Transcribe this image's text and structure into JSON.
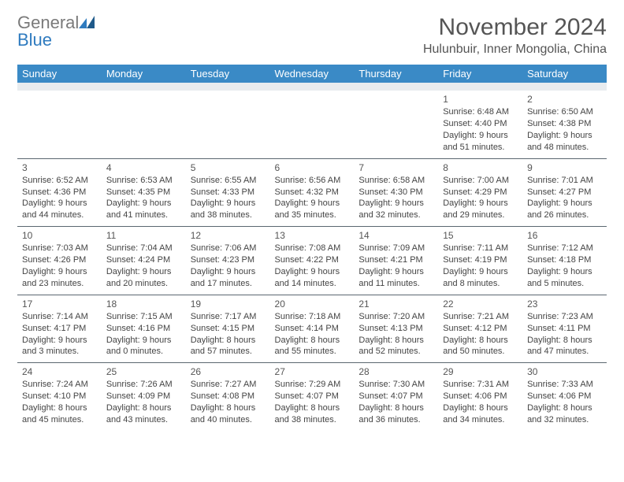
{
  "logo": {
    "text_gray": "General",
    "text_blue": "Blue"
  },
  "title": "November 2024",
  "location": "Hulunbuir, Inner Mongolia, China",
  "colors": {
    "header_bg": "#3a8ac6",
    "header_text": "#ffffff",
    "header_underband": "#e8ecef",
    "cell_border": "#5b6770",
    "body_text": "#444444",
    "title_text": "#555555",
    "logo_gray": "#7a7a7a",
    "logo_blue": "#2f7bbf",
    "background": "#ffffff"
  },
  "day_headers": [
    "Sunday",
    "Monday",
    "Tuesday",
    "Wednesday",
    "Thursday",
    "Friday",
    "Saturday"
  ],
  "weeks": [
    [
      null,
      null,
      null,
      null,
      null,
      {
        "n": "1",
        "sunrise": "Sunrise: 6:48 AM",
        "sunset": "Sunset: 4:40 PM",
        "daylight1": "Daylight: 9 hours",
        "daylight2": "and 51 minutes."
      },
      {
        "n": "2",
        "sunrise": "Sunrise: 6:50 AM",
        "sunset": "Sunset: 4:38 PM",
        "daylight1": "Daylight: 9 hours",
        "daylight2": "and 48 minutes."
      }
    ],
    [
      {
        "n": "3",
        "sunrise": "Sunrise: 6:52 AM",
        "sunset": "Sunset: 4:36 PM",
        "daylight1": "Daylight: 9 hours",
        "daylight2": "and 44 minutes."
      },
      {
        "n": "4",
        "sunrise": "Sunrise: 6:53 AM",
        "sunset": "Sunset: 4:35 PM",
        "daylight1": "Daylight: 9 hours",
        "daylight2": "and 41 minutes."
      },
      {
        "n": "5",
        "sunrise": "Sunrise: 6:55 AM",
        "sunset": "Sunset: 4:33 PM",
        "daylight1": "Daylight: 9 hours",
        "daylight2": "and 38 minutes."
      },
      {
        "n": "6",
        "sunrise": "Sunrise: 6:56 AM",
        "sunset": "Sunset: 4:32 PM",
        "daylight1": "Daylight: 9 hours",
        "daylight2": "and 35 minutes."
      },
      {
        "n": "7",
        "sunrise": "Sunrise: 6:58 AM",
        "sunset": "Sunset: 4:30 PM",
        "daylight1": "Daylight: 9 hours",
        "daylight2": "and 32 minutes."
      },
      {
        "n": "8",
        "sunrise": "Sunrise: 7:00 AM",
        "sunset": "Sunset: 4:29 PM",
        "daylight1": "Daylight: 9 hours",
        "daylight2": "and 29 minutes."
      },
      {
        "n": "9",
        "sunrise": "Sunrise: 7:01 AM",
        "sunset": "Sunset: 4:27 PM",
        "daylight1": "Daylight: 9 hours",
        "daylight2": "and 26 minutes."
      }
    ],
    [
      {
        "n": "10",
        "sunrise": "Sunrise: 7:03 AM",
        "sunset": "Sunset: 4:26 PM",
        "daylight1": "Daylight: 9 hours",
        "daylight2": "and 23 minutes."
      },
      {
        "n": "11",
        "sunrise": "Sunrise: 7:04 AM",
        "sunset": "Sunset: 4:24 PM",
        "daylight1": "Daylight: 9 hours",
        "daylight2": "and 20 minutes."
      },
      {
        "n": "12",
        "sunrise": "Sunrise: 7:06 AM",
        "sunset": "Sunset: 4:23 PM",
        "daylight1": "Daylight: 9 hours",
        "daylight2": "and 17 minutes."
      },
      {
        "n": "13",
        "sunrise": "Sunrise: 7:08 AM",
        "sunset": "Sunset: 4:22 PM",
        "daylight1": "Daylight: 9 hours",
        "daylight2": "and 14 minutes."
      },
      {
        "n": "14",
        "sunrise": "Sunrise: 7:09 AM",
        "sunset": "Sunset: 4:21 PM",
        "daylight1": "Daylight: 9 hours",
        "daylight2": "and 11 minutes."
      },
      {
        "n": "15",
        "sunrise": "Sunrise: 7:11 AM",
        "sunset": "Sunset: 4:19 PM",
        "daylight1": "Daylight: 9 hours",
        "daylight2": "and 8 minutes."
      },
      {
        "n": "16",
        "sunrise": "Sunrise: 7:12 AM",
        "sunset": "Sunset: 4:18 PM",
        "daylight1": "Daylight: 9 hours",
        "daylight2": "and 5 minutes."
      }
    ],
    [
      {
        "n": "17",
        "sunrise": "Sunrise: 7:14 AM",
        "sunset": "Sunset: 4:17 PM",
        "daylight1": "Daylight: 9 hours",
        "daylight2": "and 3 minutes."
      },
      {
        "n": "18",
        "sunrise": "Sunrise: 7:15 AM",
        "sunset": "Sunset: 4:16 PM",
        "daylight1": "Daylight: 9 hours",
        "daylight2": "and 0 minutes."
      },
      {
        "n": "19",
        "sunrise": "Sunrise: 7:17 AM",
        "sunset": "Sunset: 4:15 PM",
        "daylight1": "Daylight: 8 hours",
        "daylight2": "and 57 minutes."
      },
      {
        "n": "20",
        "sunrise": "Sunrise: 7:18 AM",
        "sunset": "Sunset: 4:14 PM",
        "daylight1": "Daylight: 8 hours",
        "daylight2": "and 55 minutes."
      },
      {
        "n": "21",
        "sunrise": "Sunrise: 7:20 AM",
        "sunset": "Sunset: 4:13 PM",
        "daylight1": "Daylight: 8 hours",
        "daylight2": "and 52 minutes."
      },
      {
        "n": "22",
        "sunrise": "Sunrise: 7:21 AM",
        "sunset": "Sunset: 4:12 PM",
        "daylight1": "Daylight: 8 hours",
        "daylight2": "and 50 minutes."
      },
      {
        "n": "23",
        "sunrise": "Sunrise: 7:23 AM",
        "sunset": "Sunset: 4:11 PM",
        "daylight1": "Daylight: 8 hours",
        "daylight2": "and 47 minutes."
      }
    ],
    [
      {
        "n": "24",
        "sunrise": "Sunrise: 7:24 AM",
        "sunset": "Sunset: 4:10 PM",
        "daylight1": "Daylight: 8 hours",
        "daylight2": "and 45 minutes."
      },
      {
        "n": "25",
        "sunrise": "Sunrise: 7:26 AM",
        "sunset": "Sunset: 4:09 PM",
        "daylight1": "Daylight: 8 hours",
        "daylight2": "and 43 minutes."
      },
      {
        "n": "26",
        "sunrise": "Sunrise: 7:27 AM",
        "sunset": "Sunset: 4:08 PM",
        "daylight1": "Daylight: 8 hours",
        "daylight2": "and 40 minutes."
      },
      {
        "n": "27",
        "sunrise": "Sunrise: 7:29 AM",
        "sunset": "Sunset: 4:07 PM",
        "daylight1": "Daylight: 8 hours",
        "daylight2": "and 38 minutes."
      },
      {
        "n": "28",
        "sunrise": "Sunrise: 7:30 AM",
        "sunset": "Sunset: 4:07 PM",
        "daylight1": "Daylight: 8 hours",
        "daylight2": "and 36 minutes."
      },
      {
        "n": "29",
        "sunrise": "Sunrise: 7:31 AM",
        "sunset": "Sunset: 4:06 PM",
        "daylight1": "Daylight: 8 hours",
        "daylight2": "and 34 minutes."
      },
      {
        "n": "30",
        "sunrise": "Sunrise: 7:33 AM",
        "sunset": "Sunset: 4:06 PM",
        "daylight1": "Daylight: 8 hours",
        "daylight2": "and 32 minutes."
      }
    ]
  ]
}
